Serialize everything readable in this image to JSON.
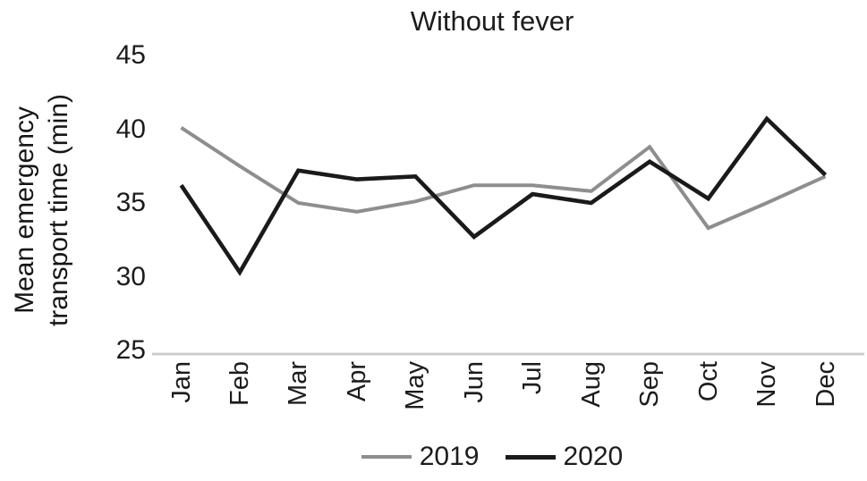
{
  "figure": {
    "title": "Without fever",
    "y_axis_label_line1": "Mean emergency",
    "y_axis_label_line2": "transport time (min)"
  },
  "chart_data": {
    "type": "line",
    "title": "Without fever",
    "ylabel": "Mean emergency transport time (min)",
    "xlabel": "",
    "categories": [
      "Jan",
      "Feb",
      "Mar",
      "Apr",
      "May",
      "Jun",
      "Jul",
      "Aug",
      "Sep",
      "Oct",
      "Nov",
      "Dec"
    ],
    "yticks": [
      45,
      40,
      35,
      30,
      25
    ],
    "ylim": [
      25,
      45
    ],
    "grid": false,
    "legend_position": "bottom",
    "axis_line_color": "#cccccc",
    "series": [
      {
        "name": "2019",
        "color": "#8e8e8e",
        "values": [
          40.1,
          37.5,
          35.0,
          34.4,
          35.1,
          36.2,
          36.2,
          35.8,
          38.8,
          33.3,
          35.0,
          36.8
        ]
      },
      {
        "name": "2020",
        "color": "#1a1a1a",
        "values": [
          36.2,
          30.3,
          37.2,
          36.6,
          36.8,
          32.7,
          35.6,
          35.0,
          37.8,
          35.3,
          40.7,
          36.9
        ]
      }
    ]
  }
}
